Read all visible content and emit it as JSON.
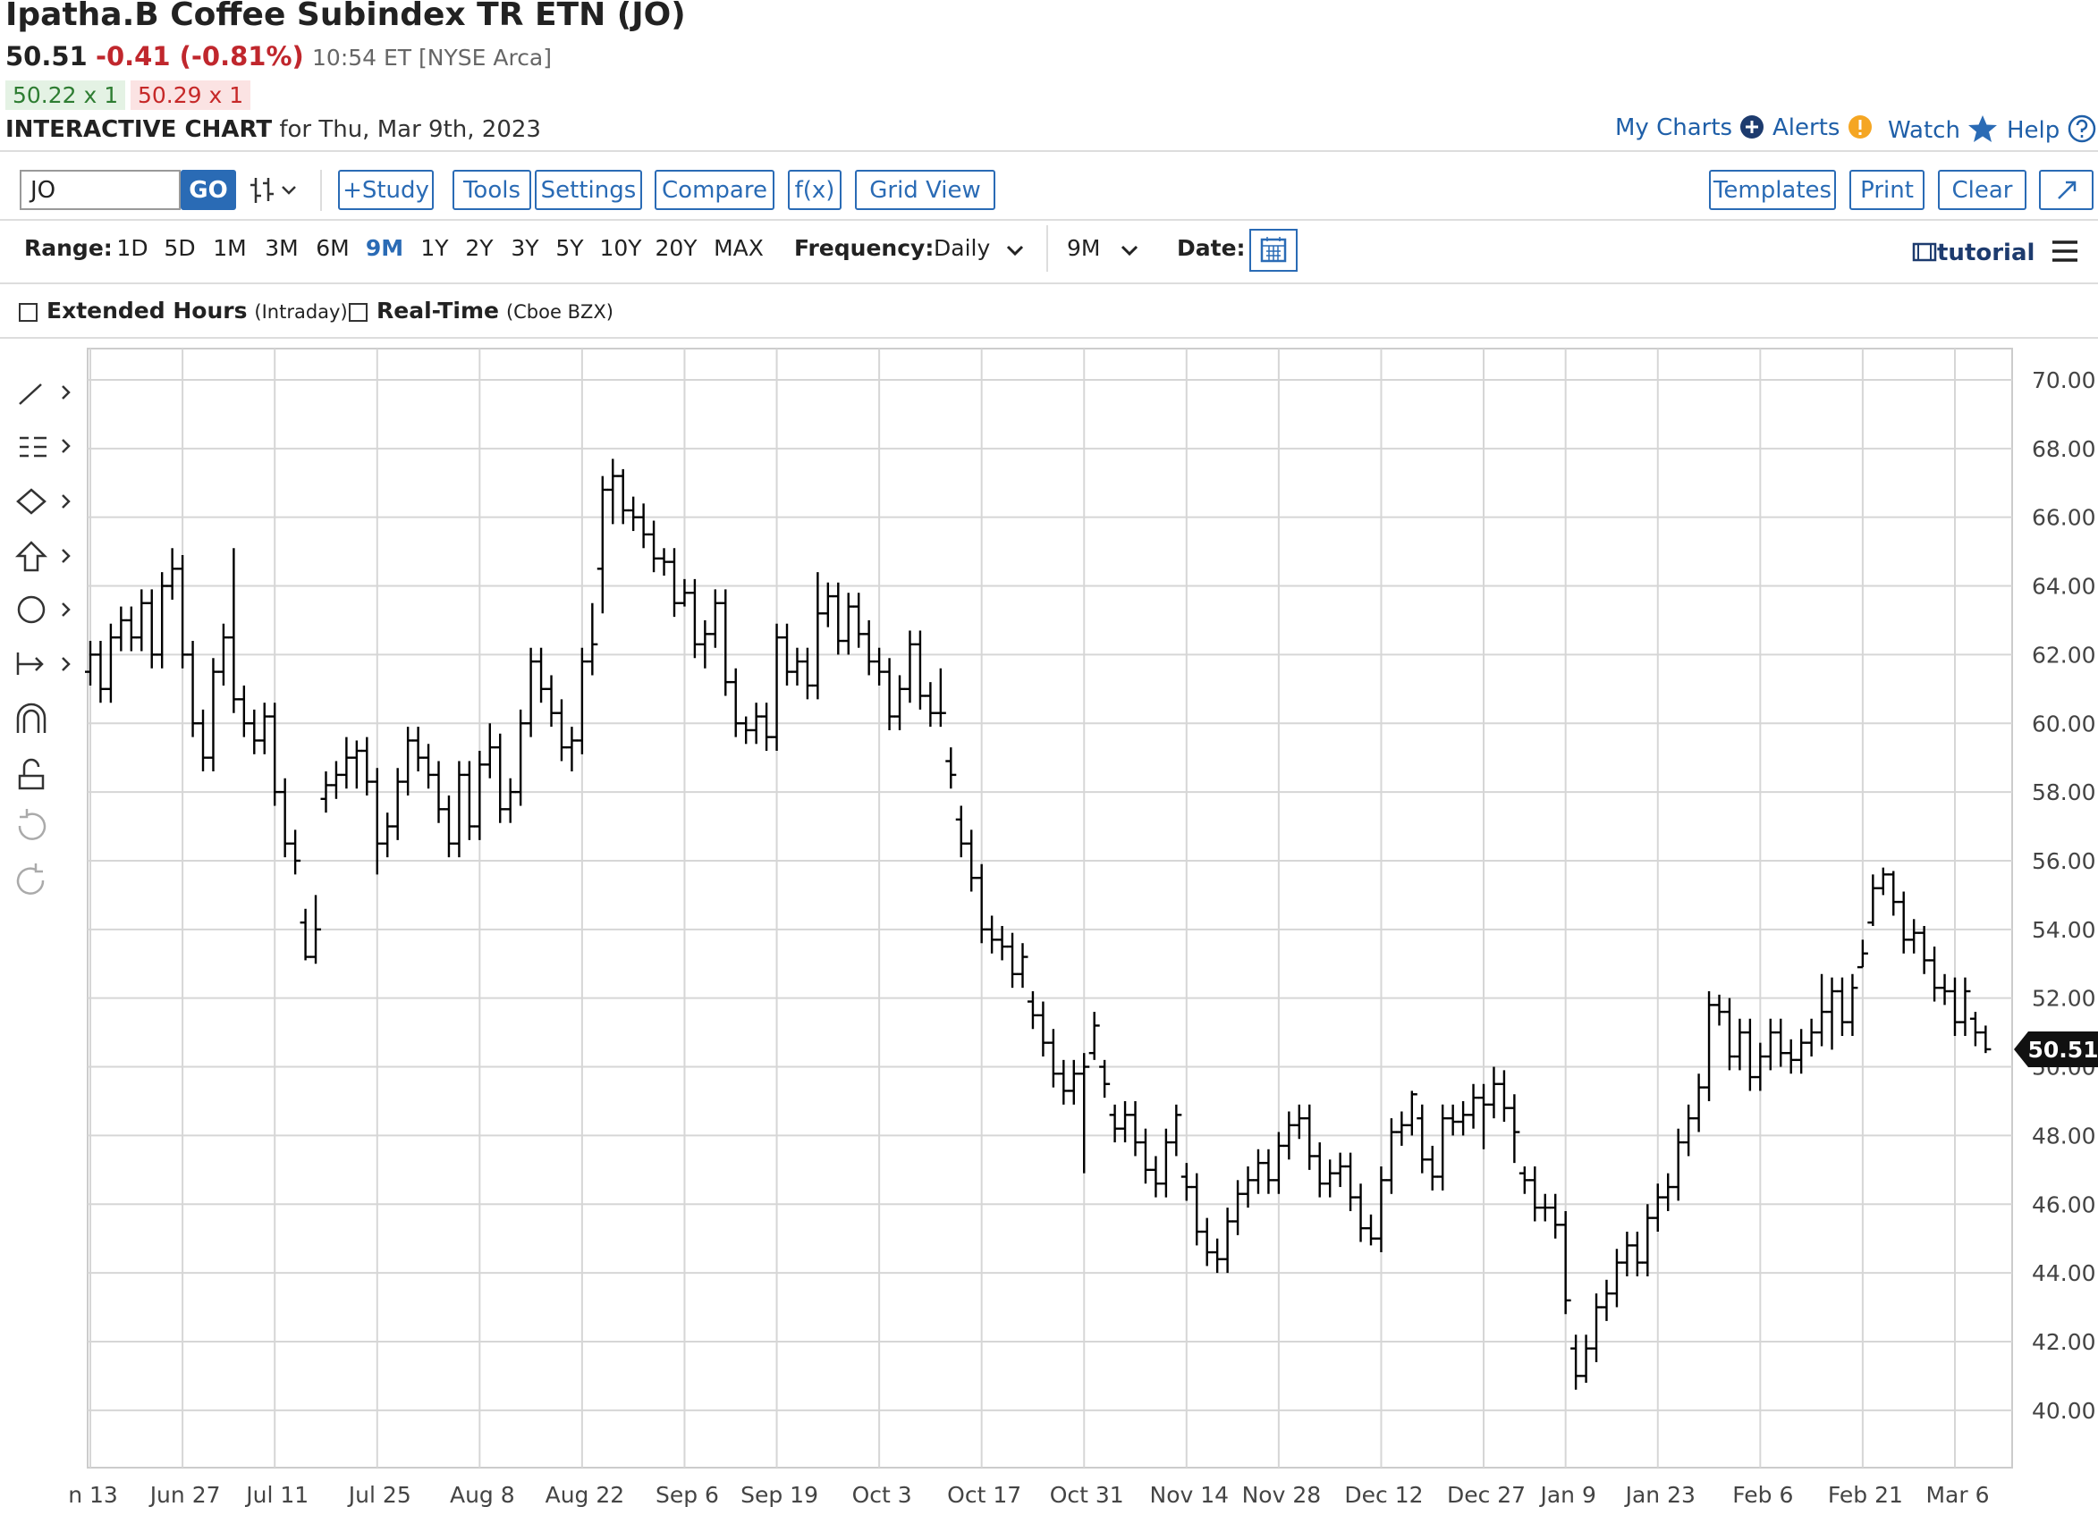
{
  "header": {
    "title": "Ipatha.B Coffee Subindex TR ETN (JO)",
    "price": "50.51",
    "change": "-0.41 (-0.81%)",
    "time": "10:54 ET [NYSE Arca]",
    "bid": "50.22 x 1",
    "ask": "50.29 x 1",
    "chart_label": "INTERACTIVE CHART",
    "chart_date": "for Thu, Mar 9th, 2023",
    "links": [
      "My Charts",
      "Alerts",
      "Watch",
      "Help"
    ]
  },
  "toolbar": {
    "symbol": "JO",
    "go": "GO",
    "buttons": [
      "+Study",
      "Tools",
      "Settings",
      "Compare",
      "f(x)",
      "Grid View"
    ],
    "right_buttons": [
      "Templates",
      "Print",
      "Clear"
    ]
  },
  "range_bar": {
    "range_label": "Range:",
    "ranges": [
      "1D",
      "5D",
      "1M",
      "3M",
      "6M",
      "9M",
      "1Y",
      "2Y",
      "3Y",
      "5Y",
      "10Y",
      "20Y",
      "MAX"
    ],
    "frequency_label": "Frequency:",
    "frequency": "Daily",
    "period": "9M",
    "date_label": "Date:",
    "tutorial": "tutorial"
  },
  "options": [
    {
      "label": "Extended Hours",
      "note": "(Intraday)"
    },
    {
      "label": "Real-Time",
      "note": "(Cboe BZX)"
    }
  ],
  "chart_data": {
    "type": "ohlc",
    "color": "#000000",
    "grid": true,
    "ylim": [
      38.33,
      70.91
    ],
    "yticks": [
      {
        "value": 40,
        "label": "40.00"
      },
      {
        "value": 42,
        "label": "42.00"
      },
      {
        "value": 44,
        "label": "44.00"
      },
      {
        "value": 46,
        "label": "46.00"
      },
      {
        "value": 48,
        "label": "48.00"
      },
      {
        "value": 50,
        "label": "50.00"
      },
      {
        "value": 52,
        "label": "52.00"
      },
      {
        "value": 54,
        "label": "54.00"
      },
      {
        "value": 56,
        "label": "56.00"
      },
      {
        "value": 58,
        "label": "58.00"
      },
      {
        "value": 60,
        "label": "60.00"
      },
      {
        "value": 62,
        "label": "62.00"
      },
      {
        "value": 64,
        "label": "64.00"
      },
      {
        "value": 66,
        "label": "66.00"
      },
      {
        "value": 68,
        "label": "68.00"
      },
      {
        "value": 70,
        "label": "70.00"
      }
    ],
    "categories": [
      "n 13",
      null,
      null,
      null,
      null,
      null,
      null,
      null,
      null,
      "Jun 27",
      null,
      null,
      null,
      null,
      null,
      null,
      null,
      null,
      "Jul 11",
      null,
      null,
      null,
      null,
      null,
      null,
      null,
      null,
      null,
      "Jul 25",
      null,
      null,
      null,
      null,
      null,
      null,
      null,
      null,
      null,
      "Aug 8",
      null,
      null,
      null,
      null,
      null,
      null,
      null,
      null,
      null,
      "Aug 22",
      null,
      null,
      null,
      null,
      null,
      null,
      null,
      null,
      null,
      "Sep 6",
      null,
      null,
      null,
      null,
      null,
      null,
      null,
      null,
      "Sep 19",
      null,
      null,
      null,
      null,
      null,
      null,
      null,
      null,
      null,
      "Oct 3",
      null,
      null,
      null,
      null,
      null,
      null,
      null,
      null,
      null,
      "Oct 17",
      null,
      null,
      null,
      null,
      null,
      null,
      null,
      null,
      null,
      "Oct 31",
      null,
      null,
      null,
      null,
      null,
      null,
      null,
      null,
      null,
      "Nov 14",
      null,
      null,
      null,
      null,
      null,
      null,
      null,
      null,
      "Nov 28",
      null,
      null,
      null,
      null,
      null,
      null,
      null,
      null,
      null,
      "Dec 12",
      null,
      null,
      null,
      null,
      null,
      null,
      null,
      null,
      null,
      "Dec 27",
      null,
      null,
      null,
      null,
      null,
      null,
      null,
      "Jan 9",
      null,
      null,
      null,
      null,
      null,
      null,
      null,
      null,
      "Jan 23",
      null,
      null,
      null,
      null,
      null,
      null,
      null,
      null,
      null,
      "Feb 6",
      null,
      null,
      null,
      null,
      null,
      null,
      null,
      null,
      null,
      "Feb 21",
      null,
      null,
      null,
      null,
      null,
      null,
      null,
      null,
      "Mar 6",
      null,
      null,
      null
    ],
    "values": [
      [
        61.5,
        62.4,
        61.1,
        62
      ],
      [
        62,
        62.4,
        60.6,
        61
      ],
      [
        61,
        62.9,
        60.6,
        62.5
      ],
      [
        62.5,
        63.4,
        62.1,
        63
      ],
      [
        63,
        63.4,
        62.1,
        62.5
      ],
      [
        62.5,
        63.9,
        62.1,
        63.5
      ],
      [
        63.5,
        63.9,
        61.6,
        62
      ],
      [
        62,
        64.4,
        61.6,
        64
      ],
      [
        64,
        65.1,
        63.6,
        64.5
      ],
      [
        64.5,
        64.9,
        61.6,
        62
      ],
      [
        62,
        62.4,
        59.6,
        60
      ],
      [
        60,
        60.4,
        58.6,
        59
      ],
      [
        59,
        61.9,
        58.6,
        61.5
      ],
      [
        61.5,
        62.9,
        61.1,
        62.5
      ],
      [
        62.5,
        65.1,
        60.3,
        60.7
      ],
      [
        60.7,
        61.1,
        59.6,
        60
      ],
      [
        60,
        60.4,
        59.1,
        59.5
      ],
      [
        59.5,
        60.6,
        59.1,
        60.2
      ],
      [
        60.2,
        60.6,
        57.6,
        58
      ],
      [
        58,
        58.4,
        56.1,
        56.5
      ],
      [
        56.5,
        56.9,
        55.6,
        56
      ],
      [
        54.2,
        54.6,
        53.1,
        53.2
      ],
      [
        53.2,
        55,
        53,
        54
      ],
      [
        57.8,
        58.6,
        57.4,
        58.2
      ],
      [
        58.2,
        58.9,
        57.8,
        58.5
      ],
      [
        58.5,
        59.6,
        58.1,
        59
      ],
      [
        59,
        59.5,
        58.1,
        59.2
      ],
      [
        59.2,
        59.6,
        57.9,
        58.3
      ],
      [
        58.3,
        58.7,
        55.6,
        56.5
      ],
      [
        56.5,
        57.4,
        56.1,
        57
      ],
      [
        57,
        58.7,
        56.6,
        58.3
      ],
      [
        58.3,
        59.9,
        57.9,
        59.5
      ],
      [
        59.5,
        59.9,
        58.6,
        59
      ],
      [
        59,
        59.4,
        58.1,
        58.5
      ],
      [
        58.5,
        58.9,
        57.1,
        57.5
      ],
      [
        57.5,
        57.9,
        56.1,
        56.5
      ],
      [
        56.5,
        58.9,
        56.1,
        58.5
      ],
      [
        58.5,
        58.9,
        56.6,
        57
      ],
      [
        57,
        59.2,
        56.6,
        58.8
      ],
      [
        58.8,
        60,
        58.4,
        59.3
      ],
      [
        59.3,
        59.7,
        57.1,
        57.5
      ],
      [
        57.5,
        58.4,
        57.1,
        58
      ],
      [
        58,
        60.4,
        57.6,
        60
      ],
      [
        60,
        62.2,
        59.6,
        61.8
      ],
      [
        61.8,
        62.2,
        60.6,
        61
      ],
      [
        61,
        61.4,
        59.9,
        60.3
      ],
      [
        60.3,
        60.7,
        58.9,
        59.3
      ],
      [
        59.3,
        59.9,
        58.6,
        59.5
      ],
      [
        59.5,
        62.2,
        59.1,
        61.8
      ],
      [
        61.8,
        63.5,
        61.4,
        62.3
      ],
      [
        64.5,
        67.2,
        63.2,
        66.8
      ],
      [
        66.8,
        67.7,
        65.8,
        67.2
      ],
      [
        67.2,
        67.4,
        65.8,
        66.2
      ],
      [
        66.2,
        66.6,
        65.6,
        66
      ],
      [
        66,
        66.4,
        65.1,
        65.5
      ],
      [
        65.5,
        65.9,
        64.4,
        64.8
      ],
      [
        64.8,
        65.1,
        64.3,
        64.7
      ],
      [
        64.7,
        65.1,
        63.1,
        63.5
      ],
      [
        63.5,
        64.2,
        63.4,
        63.8
      ],
      [
        63.8,
        64.2,
        61.9,
        62.3
      ],
      [
        62.3,
        63,
        61.6,
        62.6
      ],
      [
        62.6,
        63.9,
        62.2,
        63.5
      ],
      [
        63.5,
        63.9,
        60.8,
        61.2
      ],
      [
        61.2,
        61.6,
        59.6,
        60
      ],
      [
        60,
        60.2,
        59.4,
        59.8
      ],
      [
        59.8,
        60.6,
        59.4,
        60.2
      ],
      [
        60.2,
        60.6,
        59.2,
        59.6
      ],
      [
        59.6,
        62.9,
        59.2,
        62.5
      ],
      [
        62.5,
        62.9,
        61.1,
        61.5
      ],
      [
        61.5,
        62.2,
        61.1,
        61.8
      ],
      [
        61.8,
        62.2,
        60.7,
        61.1
      ],
      [
        61.1,
        64.4,
        60.7,
        63.2
      ],
      [
        63.2,
        64.1,
        62.8,
        63.7
      ],
      [
        63.7,
        64.1,
        62,
        62.4
      ],
      [
        62.4,
        63.8,
        62,
        63.4
      ],
      [
        63.4,
        63.8,
        62.2,
        62.6
      ],
      [
        62.6,
        63,
        61.4,
        61.8
      ],
      [
        61.8,
        62.2,
        61.1,
        61.5
      ],
      [
        61.5,
        61.9,
        59.8,
        60.2
      ],
      [
        60.2,
        61.4,
        59.8,
        61
      ],
      [
        61,
        62.7,
        60.6,
        62.3
      ],
      [
        62.3,
        62.7,
        60.4,
        60.8
      ],
      [
        60.8,
        61.2,
        59.9,
        60.3
      ],
      [
        60.3,
        61.6,
        59.9,
        60.3
      ],
      [
        58.9,
        59.3,
        58.1,
        58.5
      ],
      [
        57.2,
        57.6,
        56.1,
        56.5
      ],
      [
        56.5,
        56.9,
        55.1,
        55.5
      ],
      [
        55.5,
        55.9,
        53.6,
        54
      ],
      [
        54,
        54.4,
        53.3,
        53.7
      ],
      [
        53.7,
        54.1,
        53.1,
        53.5
      ],
      [
        53.5,
        53.9,
        52.3,
        52.7
      ],
      [
        52.7,
        53.6,
        52.3,
        53.2
      ],
      [
        51.9,
        52.2,
        51.1,
        51.5
      ],
      [
        51.5,
        51.9,
        50.3,
        50.7
      ],
      [
        50.7,
        51.1,
        49.4,
        49.8
      ],
      [
        49.8,
        50.2,
        48.9,
        49.3
      ],
      [
        49.3,
        50.2,
        48.9,
        49.8
      ],
      [
        49.8,
        50.4,
        46.9,
        50
      ],
      [
        50.4,
        51.6,
        50.2,
        51.2
      ],
      [
        50,
        50.2,
        49.1,
        49.5
      ],
      [
        48.6,
        48.9,
        47.8,
        48.2
      ],
      [
        48.2,
        49,
        47.8,
        48.6
      ],
      [
        48.6,
        49,
        47.4,
        47.8
      ],
      [
        47.8,
        48.2,
        46.6,
        47
      ],
      [
        47,
        47.4,
        46.2,
        46.6
      ],
      [
        46.6,
        48.2,
        46.2,
        47.8
      ],
      [
        47.8,
        48.9,
        47.4,
        48.6
      ],
      [
        46.8,
        47.2,
        46.1,
        46.5
      ],
      [
        46.5,
        46.9,
        44.8,
        45.2
      ],
      [
        45.2,
        45.6,
        44.2,
        44.6
      ],
      [
        44.6,
        45,
        44,
        44.4
      ],
      [
        44.4,
        45.9,
        44,
        45.5
      ],
      [
        45.5,
        46.7,
        45.1,
        46.3
      ],
      [
        46.3,
        47.1,
        45.9,
        46.7
      ],
      [
        46.7,
        47.6,
        46.3,
        47.2
      ],
      [
        47.2,
        47.6,
        46.3,
        46.7
      ],
      [
        46.7,
        48.1,
        46.3,
        47.7
      ],
      [
        47.7,
        48.7,
        47.3,
        48.3
      ],
      [
        48.3,
        48.9,
        47.9,
        48.5
      ],
      [
        48.5,
        48.9,
        47,
        47.4
      ],
      [
        47.4,
        47.8,
        46.2,
        46.6
      ],
      [
        46.6,
        47.3,
        46.2,
        46.9
      ],
      [
        46.9,
        47.5,
        46.5,
        47.1
      ],
      [
        47.1,
        47.5,
        45.8,
        46.2
      ],
      [
        46.2,
        46.6,
        44.9,
        45.3
      ],
      [
        45.3,
        45.7,
        44.8,
        45
      ],
      [
        45,
        47.1,
        44.6,
        46.7
      ],
      [
        46.7,
        48.5,
        46.3,
        48.1
      ],
      [
        48.1,
        48.7,
        47.7,
        48.3
      ],
      [
        48.3,
        49.3,
        48,
        49.2
      ],
      [
        48.5,
        48.9,
        46.9,
        47.3
      ],
      [
        47.3,
        47.7,
        46.4,
        46.8
      ],
      [
        46.8,
        48.9,
        46.4,
        48.5
      ],
      [
        48.5,
        48.9,
        48,
        48.4
      ],
      [
        48.4,
        49,
        48,
        48.6
      ],
      [
        48.6,
        49.5,
        48.2,
        49.1
      ],
      [
        49.1,
        49.5,
        47.6,
        48.9
      ],
      [
        48.9,
        50,
        48.5,
        49.5
      ],
      [
        49.5,
        49.9,
        48.4,
        48.8
      ],
      [
        48.8,
        49.2,
        47.2,
        48.1
      ],
      [
        46.9,
        47.1,
        46.3,
        46.7
      ],
      [
        46.7,
        47.1,
        45.5,
        45.9
      ],
      [
        45.9,
        46.3,
        45.5,
        45.9
      ],
      [
        45.9,
        46.3,
        45,
        45.4
      ],
      [
        45.4,
        45.8,
        42.8,
        43.2
      ],
      [
        41.8,
        42.2,
        40.6,
        41
      ],
      [
        41,
        42.2,
        40.8,
        41.8
      ],
      [
        41.8,
        43.4,
        41.4,
        43
      ],
      [
        43,
        43.8,
        42.6,
        43.4
      ],
      [
        43.4,
        44.7,
        43,
        44.3
      ],
      [
        44.3,
        45.2,
        43.9,
        44.8
      ],
      [
        44.8,
        45.2,
        43.9,
        44.3
      ],
      [
        44.3,
        46,
        43.9,
        45.6
      ],
      [
        45.6,
        46.6,
        45.2,
        46.2
      ],
      [
        46.2,
        46.9,
        45.8,
        46.5
      ],
      [
        46.5,
        48.2,
        46.1,
        47.8
      ],
      [
        47.8,
        48.9,
        47.4,
        48.5
      ],
      [
        48.5,
        49.8,
        48.1,
        49.4
      ],
      [
        49.4,
        52.2,
        49,
        51.8
      ],
      [
        51.8,
        52.1,
        51.2,
        51.6
      ],
      [
        51.6,
        52,
        49.9,
        50.3
      ],
      [
        50.3,
        51.4,
        49.9,
        51
      ],
      [
        51,
        51.4,
        49.3,
        49.7
      ],
      [
        49.7,
        50.7,
        49.3,
        50.3
      ],
      [
        50.3,
        51.4,
        49.9,
        51
      ],
      [
        51,
        51.4,
        50,
        50.4
      ],
      [
        50.4,
        50.8,
        49.8,
        50.2
      ],
      [
        50.2,
        51.1,
        49.8,
        50.7
      ],
      [
        50.7,
        51.4,
        50.3,
        51
      ],
      [
        51,
        52.7,
        50.6,
        51.6
      ],
      [
        51.6,
        52.6,
        50.5,
        52.2
      ],
      [
        52.2,
        52.6,
        50.9,
        51.3
      ],
      [
        51.3,
        52.7,
        50.9,
        52.3
      ],
      [
        52.9,
        53.7,
        52.9,
        53.3
      ],
      [
        54.2,
        55.6,
        54.1,
        55.2
      ],
      [
        55.2,
        55.8,
        55,
        55.6
      ],
      [
        55.6,
        55.7,
        54.4,
        54.8
      ],
      [
        54.8,
        55.1,
        53.3,
        53.7
      ],
      [
        53.7,
        54.3,
        53.3,
        53.9
      ],
      [
        53.9,
        54.1,
        52.7,
        53.1
      ],
      [
        53.1,
        53.5,
        51.9,
        52.3
      ],
      [
        52.3,
        52.7,
        51.8,
        52.2
      ],
      [
        52.2,
        52.6,
        50.9,
        51.3
      ],
      [
        51.3,
        52.6,
        50.9,
        52.2
      ],
      [
        51.4,
        51.6,
        50.6,
        51
      ],
      [
        51,
        51.2,
        50.4,
        50.51
      ]
    ]
  }
}
